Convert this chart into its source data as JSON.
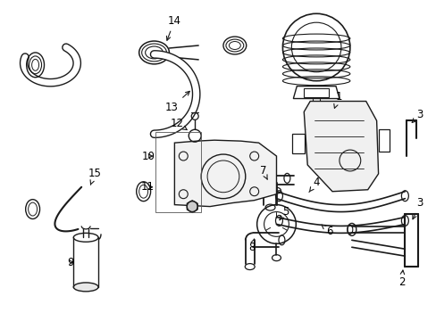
{
  "background_color": "#ffffff",
  "fig_width": 4.89,
  "fig_height": 3.6,
  "dpi": 100,
  "line_color": "#1a1a1a",
  "font_size": 8.5
}
